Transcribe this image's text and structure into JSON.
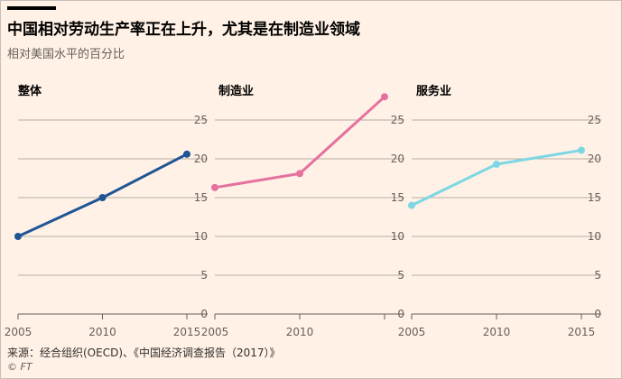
{
  "header": {
    "title": "中国相对劳动生产率正在上升，尤其是在制造业领域",
    "subtitle": "相对美国水平的百分比"
  },
  "footer": {
    "source": "来源：经合组织(OECD)、《中国经济调查报告（2017）》",
    "credit": "© FT"
  },
  "colors": {
    "background": "#fff1e5",
    "overall": "#1f5596",
    "manufacturing": "#e5719f",
    "services": "#7dd6e3"
  },
  "chart_data": [
    {
      "type": "line",
      "title": "整体",
      "x": [
        2005,
        2010,
        2015
      ],
      "x_tick_labels": [
        "2005",
        "2010",
        "2015"
      ],
      "values": [
        10.0,
        15.0,
        20.6
      ],
      "ylim": [
        0,
        25
      ],
      "y_ticks": [
        0,
        5,
        10,
        15,
        20,
        25
      ],
      "y_tick_labels": [
        "0",
        "5",
        "10",
        "15",
        "20",
        "25"
      ],
      "grid": true
    },
    {
      "type": "line",
      "title": "制造业",
      "x": [
        2005,
        2010,
        2015
      ],
      "x_tick_labels": [
        "2005",
        "2010"
      ],
      "values": [
        16.3,
        18.1,
        28.0
      ],
      "ylim": [
        0,
        25
      ],
      "y_ticks": [
        0,
        5,
        10,
        15,
        20,
        25
      ],
      "y_tick_labels": [
        "0",
        "5",
        "10",
        "15",
        "20",
        "25"
      ],
      "grid": true
    },
    {
      "type": "line",
      "title": "服务业",
      "x": [
        2005,
        2010,
        2015
      ],
      "x_tick_labels": [
        "2005",
        "2010",
        "2015"
      ],
      "values": [
        14.0,
        19.3,
        21.1
      ],
      "ylim": [
        0,
        25
      ],
      "y_ticks": [
        0,
        5,
        10,
        15,
        20,
        25
      ],
      "y_tick_labels": [
        "0",
        "5",
        "10",
        "15",
        "20",
        "25"
      ],
      "grid": true
    }
  ]
}
